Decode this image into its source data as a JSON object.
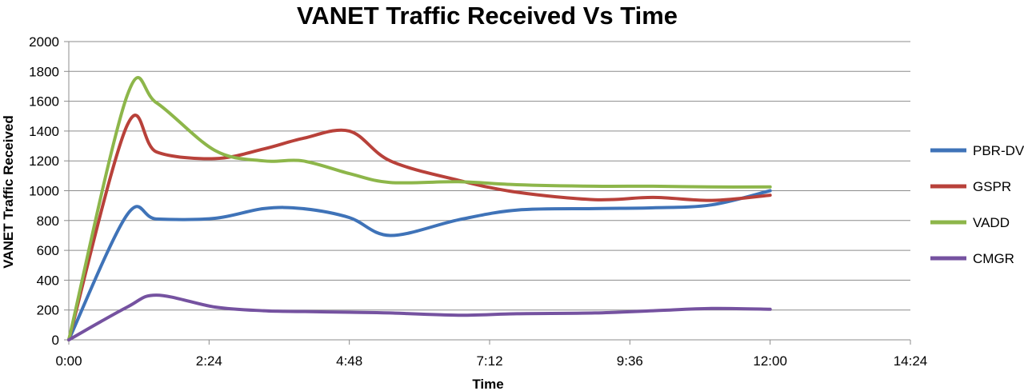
{
  "chart_data": {
    "type": "line",
    "title": "VANET Traffic Received Vs Time",
    "xlabel": "Time",
    "ylabel": "VANET Traffic Received",
    "x_ticks": [
      "0:00",
      "2:24",
      "4:48",
      "7:12",
      "9:36",
      "12:00",
      "14:24"
    ],
    "x_tick_minutes": [
      0,
      144,
      288,
      432,
      576,
      720,
      864
    ],
    "xlim": [
      0,
      864
    ],
    "ylim": [
      0,
      2000
    ],
    "y_ticks": [
      0,
      200,
      400,
      600,
      800,
      1000,
      1200,
      1400,
      1600,
      1800,
      2000
    ],
    "grid": true,
    "legend_position": "right",
    "x": [
      0,
      60,
      90,
      150,
      200,
      240,
      288,
      330,
      400,
      460,
      540,
      600,
      660,
      720
    ],
    "series": [
      {
        "name": "PBR-DV",
        "color": "#3f73b8",
        "values": [
          0,
          840,
          810,
          815,
          880,
          880,
          820,
          700,
          805,
          870,
          880,
          885,
          905,
          1000
        ]
      },
      {
        "name": "GSPR",
        "color": "#b8413a",
        "values": [
          0,
          1440,
          1260,
          1215,
          1280,
          1350,
          1400,
          1200,
          1070,
          990,
          940,
          955,
          935,
          970
        ]
      },
      {
        "name": "VADD",
        "color": "#8db64a",
        "values": [
          0,
          1640,
          1590,
          1270,
          1200,
          1200,
          1115,
          1055,
          1060,
          1040,
          1030,
          1030,
          1025,
          1025
        ]
      },
      {
        "name": "CMGR",
        "color": "#7552a0",
        "values": [
          0,
          220,
          300,
          220,
          195,
          190,
          185,
          180,
          165,
          175,
          180,
          195,
          210,
          205
        ]
      }
    ]
  }
}
